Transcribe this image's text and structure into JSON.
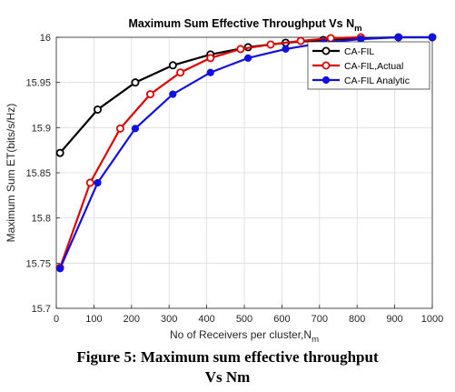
{
  "chart_data": {
    "type": "line",
    "title": "Maximum Sum Effective Throughput Vs N",
    "title_subscript": "m",
    "xlabel": "No of Receivers per cluster,N",
    "xlabel_subscript": "m",
    "ylabel": "Maximum Sum ET(bits/s/Hz)",
    "xlim": [
      0,
      1000
    ],
    "ylim": [
      15.7,
      16.0
    ],
    "xticks": [
      0,
      100,
      200,
      300,
      400,
      500,
      600,
      700,
      800,
      900,
      1000
    ],
    "yticks": [
      15.7,
      15.75,
      15.8,
      15.85,
      15.9,
      15.95,
      16.0
    ],
    "xtick_labels": [
      "0",
      "100",
      "200",
      "300",
      "400",
      "500",
      "600",
      "700",
      "800",
      "900",
      "1000"
    ],
    "ytick_labels": [
      "15.7",
      "15.75",
      "15.8",
      "15.85",
      "15.9",
      "15.95",
      "16"
    ],
    "grid": true,
    "legend_position": "top-right",
    "series": [
      {
        "name": "CA-FIL",
        "color": "#000000",
        "x": [
          10,
          110,
          210,
          310,
          410,
          510,
          610,
          710,
          810,
          910,
          1000
        ],
        "y": [
          15.872,
          15.92,
          15.95,
          15.969,
          15.981,
          15.989,
          15.994,
          15.997,
          15.999,
          16.0,
          16.0
        ]
      },
      {
        "name": "CA-FIL,Actual",
        "color": "#e00000",
        "x": [
          10,
          90,
          170,
          250,
          330,
          410,
          490,
          570,
          650,
          730,
          810
        ],
        "y": [
          15.745,
          15.839,
          15.899,
          15.937,
          15.961,
          15.977,
          15.987,
          15.992,
          15.996,
          15.999,
          16.0
        ]
      },
      {
        "name": "CA-FIL Analytic",
        "color": "#1010e0",
        "x": [
          10,
          110,
          210,
          310,
          410,
          510,
          610,
          710,
          810,
          910,
          1000
        ],
        "y": [
          15.744,
          15.839,
          15.899,
          15.937,
          15.961,
          15.977,
          15.987,
          15.994,
          15.998,
          16.0,
          16.0
        ]
      }
    ]
  },
  "caption": {
    "line1": "Figure 5: Maximum sum effective throughput",
    "line2": "Vs Nm"
  }
}
